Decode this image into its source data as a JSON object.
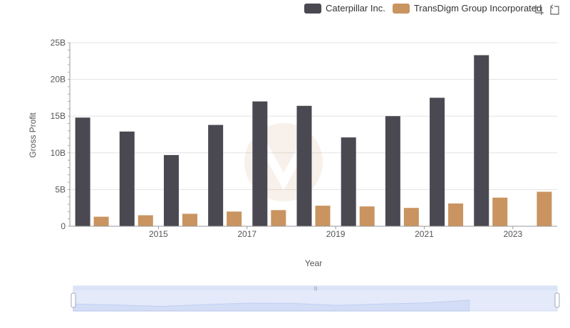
{
  "legend": {
    "items": [
      {
        "label": "Caterpillar Inc.",
        "color": "#4a4952"
      },
      {
        "label": "TransDigm Group Incorporated",
        "color": "#c99460"
      }
    ]
  },
  "toolbox": {
    "icons": [
      "zoom-icon",
      "restore-icon"
    ]
  },
  "chart_data": {
    "type": "bar",
    "xlabel": "Year",
    "ylabel": "Gross Profit",
    "ylim": [
      0,
      25000000000
    ],
    "yticks": [
      "0",
      "5B",
      "10B",
      "15B",
      "20B",
      "25B"
    ],
    "categories": [
      "2014",
      "2015",
      "2016",
      "2017",
      "2018",
      "2019",
      "2020",
      "2021",
      "2022",
      "2023",
      "2024"
    ],
    "xtick_labels": [
      "2015",
      "2017",
      "2019",
      "2021",
      "2023"
    ],
    "grid": true,
    "legend_position": "top-right",
    "series": [
      {
        "name": "Caterpillar Inc.",
        "color": "#4a4952",
        "values": [
          14800000000,
          12900000000,
          9700000000,
          13800000000,
          17000000000,
          16400000000,
          12100000000,
          15000000000,
          17500000000,
          23300000000,
          null
        ]
      },
      {
        "name": "TransDigm Group Incorporated",
        "color": "#c99460",
        "values": [
          1300000000,
          1500000000,
          1700000000,
          2000000000,
          2200000000,
          2800000000,
          2700000000,
          2500000000,
          3100000000,
          3900000000,
          4700000000
        ]
      }
    ]
  }
}
